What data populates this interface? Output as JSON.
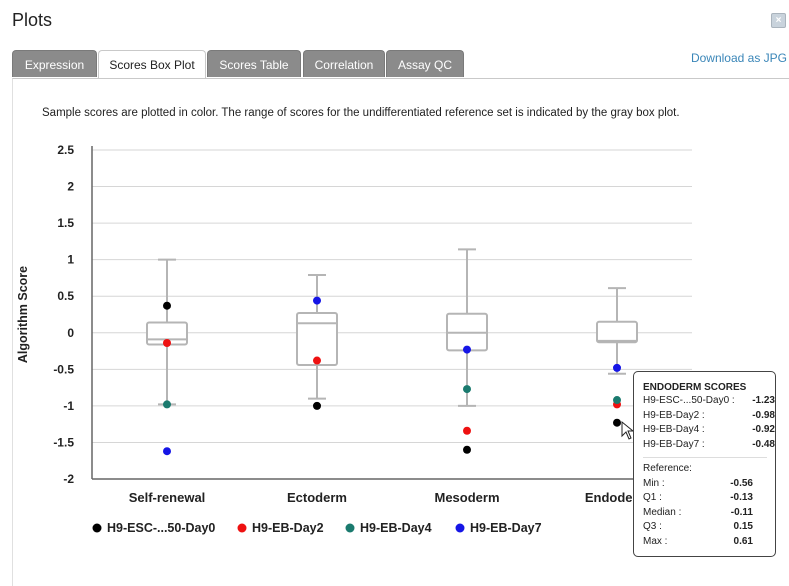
{
  "window": {
    "title": "Plots",
    "close_label": "×"
  },
  "tabs": [
    {
      "label": "Expression",
      "active": false
    },
    {
      "label": "Scores Box Plot",
      "active": true
    },
    {
      "label": "Scores Table",
      "active": false
    },
    {
      "label": "Correlation",
      "active": false
    },
    {
      "label": "Assay QC",
      "active": false
    }
  ],
  "download_label": "Download as JPG",
  "description": "Sample scores are plotted in color. The range of scores for the undifferentiated reference set is indicated by the gray box plot.",
  "chart_data": {
    "type": "box",
    "ylabel": "Algorithm Score",
    "ylim": [
      -2,
      2.5
    ],
    "yticks": [
      "2.5",
      "2",
      "1.5",
      "1",
      "0.5",
      "0",
      "-0.5",
      "-1",
      "-1.5",
      "-2"
    ],
    "grid": true,
    "categories": [
      "Self-renewal",
      "Ectoderm",
      "Mesoderm",
      "Endoderm"
    ],
    "reference_boxes": [
      {
        "min": -0.98,
        "q1": -0.16,
        "median": -0.09,
        "q3": 0.14,
        "max": 1.0
      },
      {
        "min": -0.9,
        "q1": -0.44,
        "median": 0.13,
        "q3": 0.27,
        "max": 0.79
      },
      {
        "min": -1.0,
        "q1": -0.24,
        "median": 0.0,
        "q3": 0.26,
        "max": 1.14
      },
      {
        "min": -0.56,
        "q1": -0.13,
        "median": -0.11,
        "q3": 0.15,
        "max": 0.61
      }
    ],
    "series": [
      {
        "name": "H9-ESC-...50-Day0",
        "color": "#000000",
        "values": [
          0.37,
          -1.0,
          -1.6,
          -1.23
        ]
      },
      {
        "name": "H9-EB-Day2",
        "color": "#ee1111",
        "values": [
          -0.14,
          -0.38,
          -1.34,
          -0.98
        ]
      },
      {
        "name": "H9-EB-Day4",
        "color": "#1a7a6e",
        "values": [
          -0.98,
          null,
          -0.77,
          -0.92
        ]
      },
      {
        "name": "H9-EB-Day7",
        "color": "#1515e6",
        "values": [
          -1.62,
          0.44,
          -0.23,
          -0.48
        ]
      }
    ],
    "legend_position": "bottom"
  },
  "tooltip": {
    "title": "ENDODERM SCORES",
    "samples": [
      {
        "label": "H9-ESC-...50-Day0 :",
        "value": "-1.23"
      },
      {
        "label": "H9-EB-Day2 :",
        "value": "-0.98"
      },
      {
        "label": "H9-EB-Day4 :",
        "value": "-0.92"
      },
      {
        "label": "H9-EB-Day7 :",
        "value": "-0.48"
      }
    ],
    "reference_title": "Reference:",
    "reference": [
      {
        "label": "Min :",
        "value": "-0.56"
      },
      {
        "label": "Q1 :",
        "value": "-0.13"
      },
      {
        "label": "Median :",
        "value": "-0.11"
      },
      {
        "label": "Q3 :",
        "value": "0.15"
      },
      {
        "label": "Max :",
        "value": "0.61"
      }
    ]
  }
}
